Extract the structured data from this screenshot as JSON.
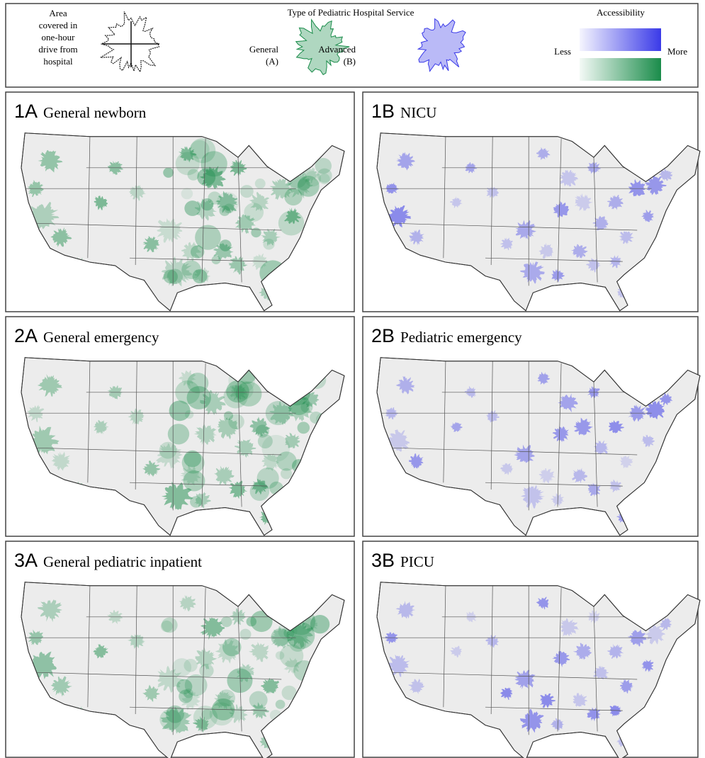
{
  "legend": {
    "area_lines": [
      "Area",
      "covered in",
      "one-hour",
      "drive from",
      "hospital"
    ],
    "service_title": "Type of Pediatric Hospital Service",
    "general": {
      "lines": [
        "General",
        "(A)"
      ],
      "color": "#1a8c4a"
    },
    "advanced": {
      "lines": [
        "Advanced",
        "(B)"
      ],
      "color": "#3a3ae8"
    },
    "accessibility": "Accessibility",
    "less": "Less",
    "more": "More"
  },
  "panels": [
    {
      "id": "1A",
      "title": "General newborn",
      "color": "#1a8c4a"
    },
    {
      "id": "1B",
      "title": "NICU",
      "color": "#3a3ae8"
    },
    {
      "id": "2A",
      "title": "General emergency",
      "color": "#1a8c4a"
    },
    {
      "id": "2B",
      "title": "Pediatric emergency",
      "color": "#3a3ae8"
    },
    {
      "id": "3A",
      "title": "General pediatric inpatient",
      "color": "#1a8c4a"
    },
    {
      "id": "3B",
      "title": "PICU",
      "color": "#3a3ae8"
    }
  ]
}
